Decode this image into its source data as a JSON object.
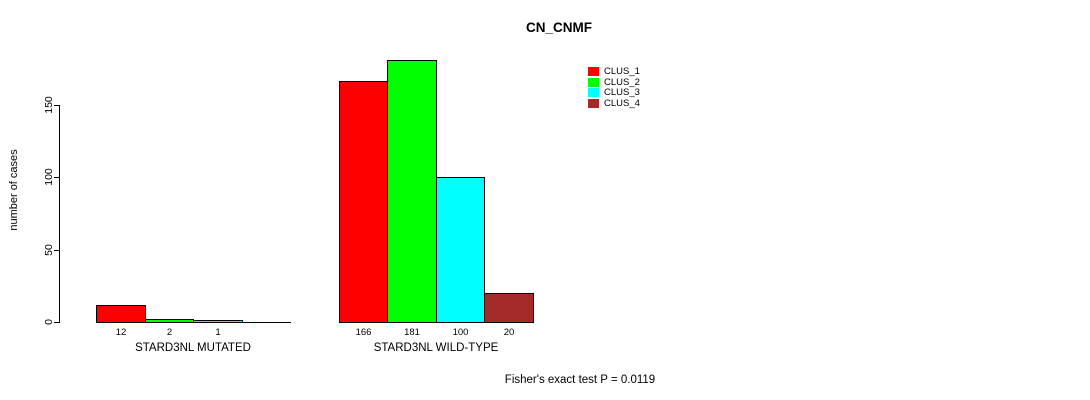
{
  "chart_data": {
    "type": "bar",
    "title": "CN_CNMF",
    "ylabel": "number of cases",
    "xlabel": "",
    "categories": [
      "STARD3NL MUTATED",
      "STARD3NL WILD-TYPE"
    ],
    "series": [
      {
        "name": "CLUS_1",
        "color": "#ff0000",
        "values": [
          12,
          166
        ]
      },
      {
        "name": "CLUS_2",
        "color": "#00ff00",
        "values": [
          2,
          181
        ]
      },
      {
        "name": "CLUS_3",
        "color": "#00ffff",
        "values": [
          1,
          100
        ]
      },
      {
        "name": "CLUS_4",
        "color": "#a52a2a",
        "values": [
          0,
          20
        ]
      }
    ],
    "yticks": [
      0,
      50,
      100,
      150
    ],
    "ylim": [
      0,
      181
    ],
    "grid": false,
    "legend_position": "top-right",
    "bar_value_labels_visible": true,
    "annotation": "Fisher's exact test P = 0.0119"
  }
}
